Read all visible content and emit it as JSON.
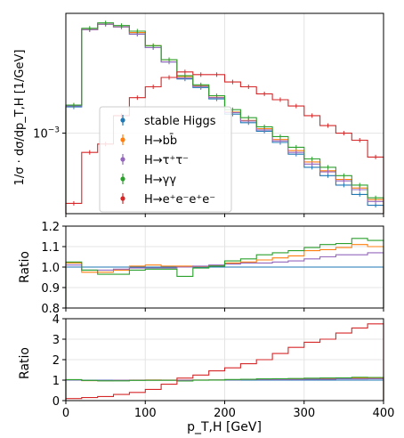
{
  "chart_data": [
    {
      "type": "line",
      "panel": "main",
      "ylabel": "1/σ · dσ/dp_T,H  [1/GeV]",
      "yscale": "log",
      "ylim": [
        0.0003,
        0.006
      ],
      "xlim": [
        0,
        400
      ],
      "grid": true,
      "legend_placement": "lower-left",
      "yticks": [
        {
          "value": 0.001,
          "label": "10",
          "sup": "−3"
        }
      ],
      "x_edges": [
        0,
        20,
        40,
        60,
        80,
        100,
        120,
        140,
        160,
        180,
        200,
        220,
        240,
        260,
        280,
        300,
        320,
        340,
        360,
        380,
        400
      ],
      "series": [
        {
          "key": "stable",
          "name": "stable Higgs",
          "color": "#1f77b4",
          "values": [
            0.00148,
            0.0047,
            0.0051,
            0.0049,
            0.0044,
            0.0036,
            0.0029,
            0.00225,
            0.00198,
            0.00167,
            0.00133,
            0.00117,
            0.00103,
            0.00087,
            0.00073,
            0.0006,
            0.00053,
            0.00046,
            0.0004,
            0.00034
          ]
        },
        {
          "key": "bb",
          "name": "H→bb̄",
          "color": "#ff7f0e",
          "values": [
            0.00152,
            0.0047,
            0.0051,
            0.0049,
            0.0045,
            0.0037,
            0.003,
            0.00233,
            0.00203,
            0.00171,
            0.00137,
            0.00121,
            0.00107,
            0.00091,
            0.00077,
            0.00065,
            0.00057,
            0.0005,
            0.00044,
            0.00037
          ]
        },
        {
          "key": "tautau",
          "name": "H→τ⁺τ⁻",
          "color": "#9467bd",
          "values": [
            0.0015,
            0.0047,
            0.0051,
            0.0049,
            0.0044,
            0.0036,
            0.0029,
            0.00228,
            0.00201,
            0.0017,
            0.00136,
            0.0012,
            0.00105,
            0.00089,
            0.00075,
            0.00063,
            0.00056,
            0.00049,
            0.00043,
            0.00036
          ]
        },
        {
          "key": "gammagamma",
          "name": "H→γγ",
          "color": "#2ca02c",
          "values": [
            0.00152,
            0.0048,
            0.0052,
            0.005,
            0.0046,
            0.0037,
            0.003,
            0.00236,
            0.00206,
            0.00175,
            0.00142,
            0.00126,
            0.0011,
            0.00095,
            0.00081,
            0.00068,
            0.0006,
            0.00053,
            0.00046,
            0.00038
          ]
        },
        {
          "key": "4e",
          "name": "H→e⁺e⁻e⁺e⁻",
          "color": "#d62728",
          "values": [
            0.00035,
            0.00075,
            0.00085,
            0.0013,
            0.0017,
            0.002,
            0.0023,
            0.0025,
            0.0024,
            0.0024,
            0.00215,
            0.002,
            0.0018,
            0.00165,
            0.0015,
            0.0013,
            0.00112,
            0.001,
            0.0009,
            0.0007
          ]
        }
      ]
    },
    {
      "type": "line",
      "panel": "ratio",
      "ylabel": "Ratio",
      "ylim": [
        0.8,
        1.2
      ],
      "xlim": [
        0,
        400
      ],
      "grid": true,
      "yticks": [
        "0.8",
        "0.9",
        "1.0",
        "1.1",
        "1.2"
      ],
      "x_edges": [
        0,
        20,
        40,
        60,
        80,
        100,
        120,
        140,
        160,
        180,
        200,
        220,
        240,
        260,
        280,
        300,
        320,
        340,
        360,
        380,
        400
      ],
      "series": [
        {
          "key": "stable",
          "color": "#1f77b4",
          "values": [
            1,
            1,
            1,
            1,
            1,
            1,
            1,
            1,
            1,
            1,
            1,
            1,
            1,
            1,
            1,
            1,
            1,
            1,
            1,
            1
          ]
        },
        {
          "key": "bb",
          "color": "#ff7f0e",
          "values": [
            1.02,
            0.975,
            0.975,
            0.985,
            1.005,
            1.01,
            1.005,
            1.005,
            1.003,
            1.008,
            1.02,
            1.025,
            1.035,
            1.045,
            1.055,
            1.08,
            1.085,
            1.095,
            1.11,
            1.1
          ]
        },
        {
          "key": "tautau",
          "color": "#9467bd",
          "values": [
            1.01,
            0.985,
            0.985,
            0.99,
            0.995,
            0.995,
            0.995,
            1.0,
            1.005,
            1.01,
            1.015,
            1.02,
            1.02,
            1.025,
            1.03,
            1.04,
            1.05,
            1.06,
            1.06,
            1.07
          ]
        },
        {
          "key": "gammagamma",
          "color": "#2ca02c",
          "values": [
            1.025,
            0.985,
            0.965,
            0.965,
            0.985,
            0.99,
            0.99,
            0.955,
            0.995,
            1.005,
            1.03,
            1.04,
            1.06,
            1.07,
            1.08,
            1.095,
            1.11,
            1.115,
            1.14,
            1.13
          ]
        }
      ]
    },
    {
      "type": "line",
      "panel": "ratio-4e",
      "ylabel": "Ratio",
      "xlabel": "p_T,H  [GeV]",
      "ylim": [
        0,
        4
      ],
      "xlim": [
        0,
        400
      ],
      "grid": true,
      "yticks": [
        "0",
        "1",
        "2",
        "3",
        "4"
      ],
      "xticks": [
        "0",
        "100",
        "200",
        "300",
        "400"
      ],
      "x_edges": [
        0,
        20,
        40,
        60,
        80,
        100,
        120,
        140,
        160,
        180,
        200,
        220,
        240,
        260,
        280,
        300,
        320,
        340,
        360,
        380,
        400
      ],
      "series": [
        {
          "key": "stable",
          "color": "#1f77b4",
          "values": [
            1,
            1,
            1,
            1,
            1,
            1,
            1,
            1,
            1,
            1,
            1,
            1,
            1,
            1,
            1,
            1,
            1,
            1,
            1,
            1
          ]
        },
        {
          "key": "bb",
          "color": "#ff7f0e",
          "values": [
            1.02,
            0.975,
            0.975,
            0.985,
            1.005,
            1.01,
            1.005,
            1.005,
            1.003,
            1.008,
            1.02,
            1.025,
            1.035,
            1.045,
            1.055,
            1.08,
            1.085,
            1.095,
            1.11,
            1.1
          ]
        },
        {
          "key": "tautau",
          "color": "#9467bd",
          "values": [
            1.01,
            0.985,
            0.985,
            0.99,
            0.995,
            0.995,
            0.995,
            1.0,
            1.005,
            1.01,
            1.015,
            1.02,
            1.02,
            1.025,
            1.03,
            1.04,
            1.05,
            1.06,
            1.06,
            1.07
          ]
        },
        {
          "key": "gammagamma",
          "color": "#2ca02c",
          "values": [
            1.025,
            0.985,
            0.965,
            0.965,
            0.985,
            0.99,
            0.99,
            0.955,
            0.995,
            1.005,
            1.03,
            1.04,
            1.06,
            1.07,
            1.08,
            1.095,
            1.11,
            1.115,
            1.14,
            1.13
          ]
        },
        {
          "key": "4e",
          "color": "#d62728",
          "values": [
            0.1,
            0.15,
            0.2,
            0.3,
            0.4,
            0.55,
            0.8,
            1.1,
            1.25,
            1.45,
            1.6,
            1.8,
            2.0,
            2.3,
            2.6,
            2.85,
            3.0,
            3.3,
            3.55,
            3.75
          ]
        }
      ]
    }
  ]
}
